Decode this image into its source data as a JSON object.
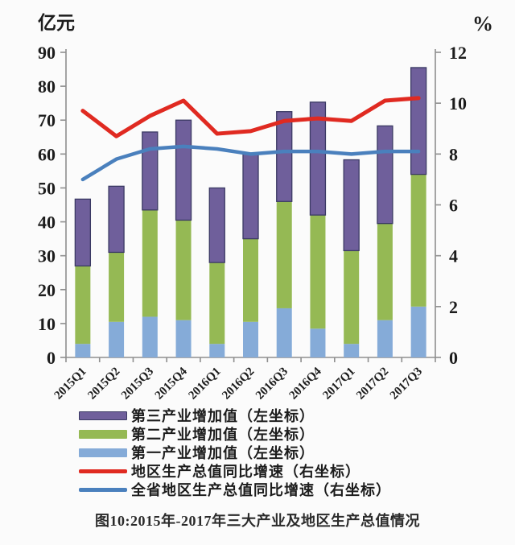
{
  "chart_data": {
    "type": "bar",
    "subtype": "stacked-bars-with-lines-combo",
    "categories": [
      "2015Q1",
      "2015Q2",
      "2015Q3",
      "2015Q4",
      "2016Q1",
      "2016Q2",
      "2016Q3",
      "2016Q4",
      "2017Q1",
      "2017Q2",
      "2017Q3"
    ],
    "bar_series": [
      {
        "name": "第一产业增加值（左坐标）",
        "axis": "left",
        "color": "#85ABD8",
        "values": [
          4,
          10.5,
          12,
          11,
          4,
          10.5,
          14.5,
          8.5,
          4,
          11,
          15
        ]
      },
      {
        "name": "第二产业增加值（左坐标）",
        "axis": "left",
        "color": "#95B954",
        "values": [
          23,
          20.5,
          31.5,
          29.5,
          24,
          24.5,
          31.5,
          33.5,
          27.5,
          28.5,
          39
        ]
      },
      {
        "name": "第三产业增加值（左坐标）",
        "axis": "left",
        "color": "#6F5F9B",
        "border": "#3B3A64",
        "values": [
          19.7,
          19.5,
          23,
          29.5,
          22,
          25,
          26.5,
          33.3,
          26.8,
          28.8,
          31.5
        ]
      }
    ],
    "line_series": [
      {
        "name": "地区生产总值同比增速（右坐标）",
        "axis": "right",
        "color": "#E02A21",
        "values": [
          9.7,
          8.7,
          9.5,
          10.1,
          8.8,
          8.9,
          9.3,
          9.4,
          9.3,
          10.1,
          10.2
        ]
      },
      {
        "name": "全省地区生产总值同比增速（右坐标）",
        "axis": "right",
        "color": "#4A80BD",
        "values": [
          7.0,
          7.8,
          8.2,
          8.3,
          8.2,
          8.0,
          8.1,
          8.1,
          8.0,
          8.1,
          8.1
        ]
      }
    ],
    "left_axis": {
      "title": "亿元",
      "min": 0,
      "max": 90,
      "step": 10
    },
    "right_axis": {
      "title": "%",
      "min": 0,
      "max": 12,
      "step": 2
    },
    "legend_position": "bottom-left",
    "grid": false,
    "caption": "图10:2015年-2017年三大产业及地区生产总值情况"
  }
}
